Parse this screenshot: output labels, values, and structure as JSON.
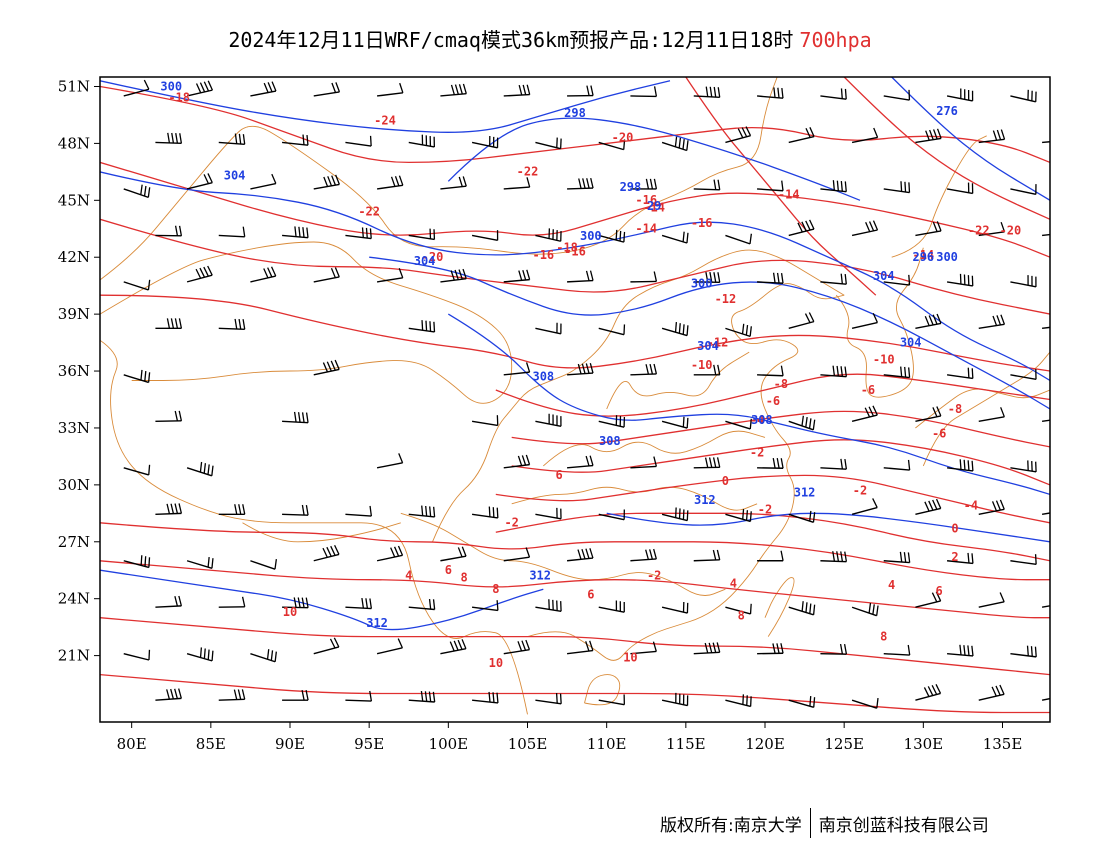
{
  "header": {
    "title": "2024年12月11日WRF/cmaq模式36km预报产品:12月11日18时",
    "level": "700hpa",
    "level_color": "#e03030"
  },
  "map": {
    "lon_range": [
      78,
      138
    ],
    "lat_range": [
      17.5,
      51.5
    ],
    "lon_ticks": [
      "80E",
      "85E",
      "90E",
      "95E",
      "100E",
      "105E",
      "110E",
      "115E",
      "120E",
      "125E",
      "130E",
      "135E"
    ],
    "lat_ticks": [
      "51N",
      "48N",
      "45N",
      "42N",
      "39N",
      "36N",
      "33N",
      "30N",
      "27N",
      "24N",
      "21N"
    ],
    "temperature_color": "#e03030",
    "height_color": "#2040e0",
    "boundary_color": "#d98b3a",
    "wind_barb_color": "#000000",
    "temperature_labels": [
      "-18",
      "-24",
      "-22",
      "-20",
      "-22",
      "-16",
      "-14",
      "-16",
      "-18",
      "-20",
      "-14",
      "-16",
      "-14",
      "-12",
      "-10",
      "-10",
      "-8",
      "-6",
      "-6",
      "-4",
      "-2",
      "-2",
      "0",
      "-2",
      "-4",
      "-2",
      "0",
      "2",
      "4",
      "6",
      "8",
      "4",
      "6",
      "8",
      "10",
      "10",
      "10",
      "8",
      "6",
      "4",
      "8",
      "6",
      "-8",
      "-2",
      "-6",
      "-16",
      "-14",
      "-12",
      "-22",
      "-20"
    ],
    "height_labels": [
      "300",
      "298",
      "276",
      "304",
      "298",
      "29",
      "300",
      "304",
      "300",
      "304",
      "304",
      "308",
      "308",
      "308",
      "312",
      "312",
      "312",
      "312",
      "296",
      "300",
      "304"
    ]
  },
  "footer": {
    "copyright": "版权所有:南京大学",
    "company": "南京创蓝科技有限公司"
  }
}
